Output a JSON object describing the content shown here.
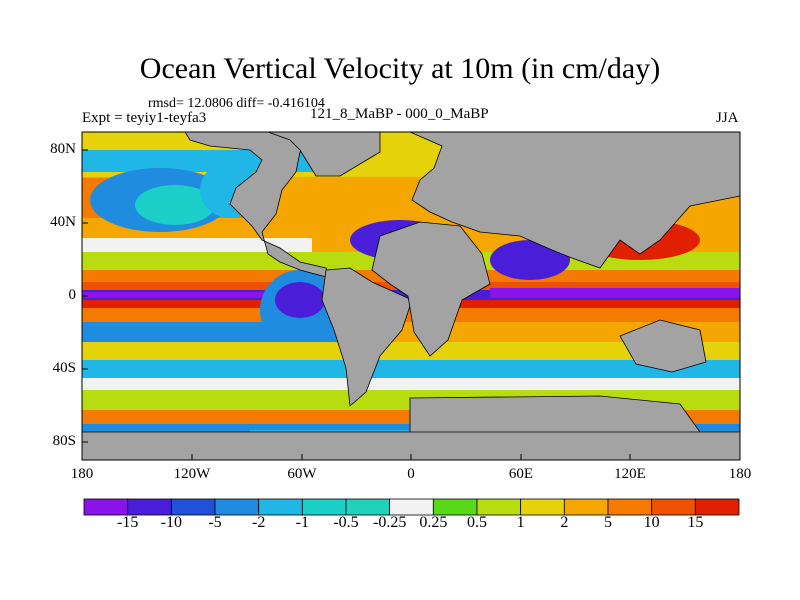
{
  "title": "Ocean Vertical Velocity at 10m (in cm/day)",
  "stats_line": "rmsd= 12.0806 diff= -0.416104",
  "experiment": "Expt = teyiy1-teyfa3",
  "difference_label": "121_8_MaBP - 000_0_MaBP",
  "season": "JJA",
  "y_axis": {
    "tick_labels": [
      "80N",
      "40N",
      "0",
      "40S",
      "80S"
    ],
    "range": [
      -90,
      90
    ]
  },
  "x_axis": {
    "tick_labels": [
      "180",
      "120W",
      "60W",
      "0",
      "60E",
      "120E",
      "180"
    ],
    "range": [
      -180,
      180
    ]
  },
  "colorbar": {
    "labels": [
      "-15",
      "-10",
      "-5",
      "-2",
      "-1",
      "-0.5",
      "-0.25",
      "0.25",
      "0.5",
      "1",
      "2",
      "5",
      "10",
      "15"
    ],
    "colors": [
      "#8a14e8",
      "#4a1ed8",
      "#1f52d8",
      "#1f8ce0",
      "#20b6e6",
      "#1ccfc8",
      "#20d2b8",
      "#f2f2f2",
      "#58d818",
      "#b8dc10",
      "#e6d20a",
      "#f6a600",
      "#f57a00",
      "#ee5200",
      "#e02000"
    ]
  },
  "colors": {
    "land": "#a3a3a3",
    "outline": "#000000"
  }
}
